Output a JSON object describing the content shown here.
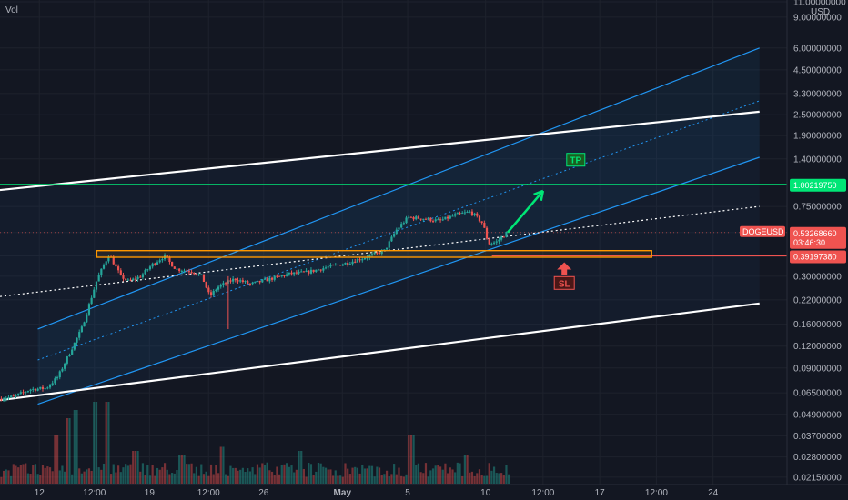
{
  "chart_data": {
    "type": "candlestick",
    "symbol": "DOGEUSD",
    "volume_label": "Vol",
    "currency": "USD",
    "y_scale": "log",
    "ylim": [
      0.0195,
      11.0
    ],
    "y_ticks": [
      "11.00000000",
      "9.00000000",
      "6.00000000",
      "4.50000000",
      "3.30000000",
      "2.50000000",
      "1.90000000",
      "1.40000000",
      "1.00219750",
      "0.75000000",
      "0.53268660",
      "0.39197380",
      "0.30000000",
      "0.22000000",
      "0.16000000",
      "0.12000000",
      "0.09000000",
      "0.06500000",
      "0.04900000",
      "0.03700000",
      "0.02800000",
      "0.02150000"
    ],
    "x_ticks": [
      {
        "label": "12",
        "t": 0.05,
        "bold": false
      },
      {
        "label": "12:00",
        "t": 0.12,
        "bold": false
      },
      {
        "label": "19",
        "t": 0.19,
        "bold": false
      },
      {
        "label": "12:00",
        "t": 0.265,
        "bold": false
      },
      {
        "label": "26",
        "t": 0.335,
        "bold": false
      },
      {
        "label": "May",
        "t": 0.435,
        "bold": true
      },
      {
        "label": "5",
        "t": 0.518,
        "bold": false
      },
      {
        "label": "10",
        "t": 0.617,
        "bold": false
      },
      {
        "label": "12:00",
        "t": 0.69,
        "bold": false
      },
      {
        "label": "17",
        "t": 0.762,
        "bold": false
      },
      {
        "label": "12:00",
        "t": 0.834,
        "bold": false
      },
      {
        "label": "24",
        "t": 0.906,
        "bold": false
      }
    ],
    "price_tags": {
      "last": {
        "name": "DOGEUSD",
        "price": "0.53268660",
        "countdown": "03:46:30",
        "value": 0.5327,
        "color": "#ef5350"
      },
      "tp": {
        "price": "1.00219750",
        "value": 1.0022,
        "color": "#00e676"
      },
      "sl": {
        "price": "0.39197380",
        "value": 0.392,
        "color": "#ef5350"
      }
    },
    "annotations": {
      "tp_label": "TP",
      "sl_label": "SL",
      "support_zone": {
        "low": 0.385,
        "high": 0.42,
        "color": "#ff9800"
      }
    },
    "price_waypoints": [
      [
        0.0,
        0.06
      ],
      [
        0.02,
        0.062
      ],
      [
        0.04,
        0.068
      ],
      [
        0.06,
        0.069
      ],
      [
        0.075,
        0.08
      ],
      [
        0.09,
        0.11
      ],
      [
        0.105,
        0.15
      ],
      [
        0.125,
        0.29
      ],
      [
        0.14,
        0.4
      ],
      [
        0.155,
        0.3
      ],
      [
        0.165,
        0.28
      ],
      [
        0.18,
        0.3
      ],
      [
        0.195,
        0.35
      ],
      [
        0.21,
        0.39
      ],
      [
        0.225,
        0.33
      ],
      [
        0.245,
        0.32
      ],
      [
        0.258,
        0.3
      ],
      [
        0.268,
        0.23
      ],
      [
        0.278,
        0.26
      ],
      [
        0.3,
        0.29
      ],
      [
        0.32,
        0.27
      ],
      [
        0.345,
        0.29
      ],
      [
        0.37,
        0.31
      ],
      [
        0.39,
        0.315
      ],
      [
        0.42,
        0.34
      ],
      [
        0.445,
        0.36
      ],
      [
        0.47,
        0.39
      ],
      [
        0.49,
        0.42
      ],
      [
        0.505,
        0.55
      ],
      [
        0.52,
        0.65
      ],
      [
        0.54,
        0.64
      ],
      [
        0.56,
        0.62
      ],
      [
        0.58,
        0.67
      ],
      [
        0.6,
        0.7
      ],
      [
        0.615,
        0.6
      ],
      [
        0.622,
        0.46
      ],
      [
        0.632,
        0.47
      ],
      [
        0.645,
        0.53
      ]
    ],
    "volume_spikes": [
      {
        "t": 0.07,
        "v": 0.6
      },
      {
        "t": 0.085,
        "v": 0.8
      },
      {
        "t": 0.095,
        "v": 0.9
      },
      {
        "t": 0.12,
        "v": 1.0
      },
      {
        "t": 0.135,
        "v": 1.0
      },
      {
        "t": 0.17,
        "v": 0.4
      },
      {
        "t": 0.23,
        "v": 0.35
      },
      {
        "t": 0.28,
        "v": 0.45
      },
      {
        "t": 0.38,
        "v": 0.4
      },
      {
        "t": 0.52,
        "v": 0.6
      },
      {
        "t": 0.59,
        "v": 0.35
      }
    ],
    "projection": {
      "from_t": 0.645,
      "from_v": 0.533,
      "to_t": 0.69,
      "to_v": 0.92,
      "color": "#00e676"
    },
    "lines": [
      {
        "kind": "channel-upper",
        "color": "#2196f3",
        "width": 1.2,
        "dash": false,
        "t0": 0.048,
        "v0": 0.15,
        "t1": 0.965,
        "v1": 6.0
      },
      {
        "kind": "channel-mid",
        "color": "#2196f3",
        "width": 1.0,
        "dash": true,
        "t0": 0.048,
        "v0": 0.1,
        "t1": 0.965,
        "v1": 3.0
      },
      {
        "kind": "channel-lower",
        "color": "#2196f3",
        "width": 1.2,
        "dash": false,
        "t0": 0.048,
        "v0": 0.056,
        "t1": 0.965,
        "v1": 1.43
      },
      {
        "kind": "white-upper",
        "color": "#ffffff",
        "width": 2.2,
        "dash": false,
        "t0": 0.0,
        "v0": 0.93,
        "t1": 0.965,
        "v1": 2.6
      },
      {
        "kind": "white-lower",
        "color": "#ffffff",
        "width": 2.2,
        "dash": false,
        "t0": 0.0,
        "v0": 0.059,
        "t1": 0.965,
        "v1": 0.21
      },
      {
        "kind": "white-mid",
        "color": "#ffffff",
        "width": 1.2,
        "dash": true,
        "t0": 0.0,
        "v0": 0.23,
        "t1": 0.965,
        "v1": 0.75
      },
      {
        "kind": "tp-horizontal",
        "color": "#00e676",
        "width": 1.2,
        "dash": false,
        "t0": 0.0,
        "v0": 1.0022,
        "t1": 1.0,
        "v1": 1.0022
      },
      {
        "kind": "sl-horizontal",
        "color": "#ef5350",
        "width": 1.2,
        "dash": false,
        "t0": 0.625,
        "v0": 0.392,
        "t1": 1.0,
        "v1": 0.392
      }
    ],
    "grid": true,
    "colors": {
      "up": "#26a69a",
      "down": "#ef5350",
      "background": "#131722",
      "grid": "#1e222d",
      "channel_fill": "#2196f3"
    }
  }
}
